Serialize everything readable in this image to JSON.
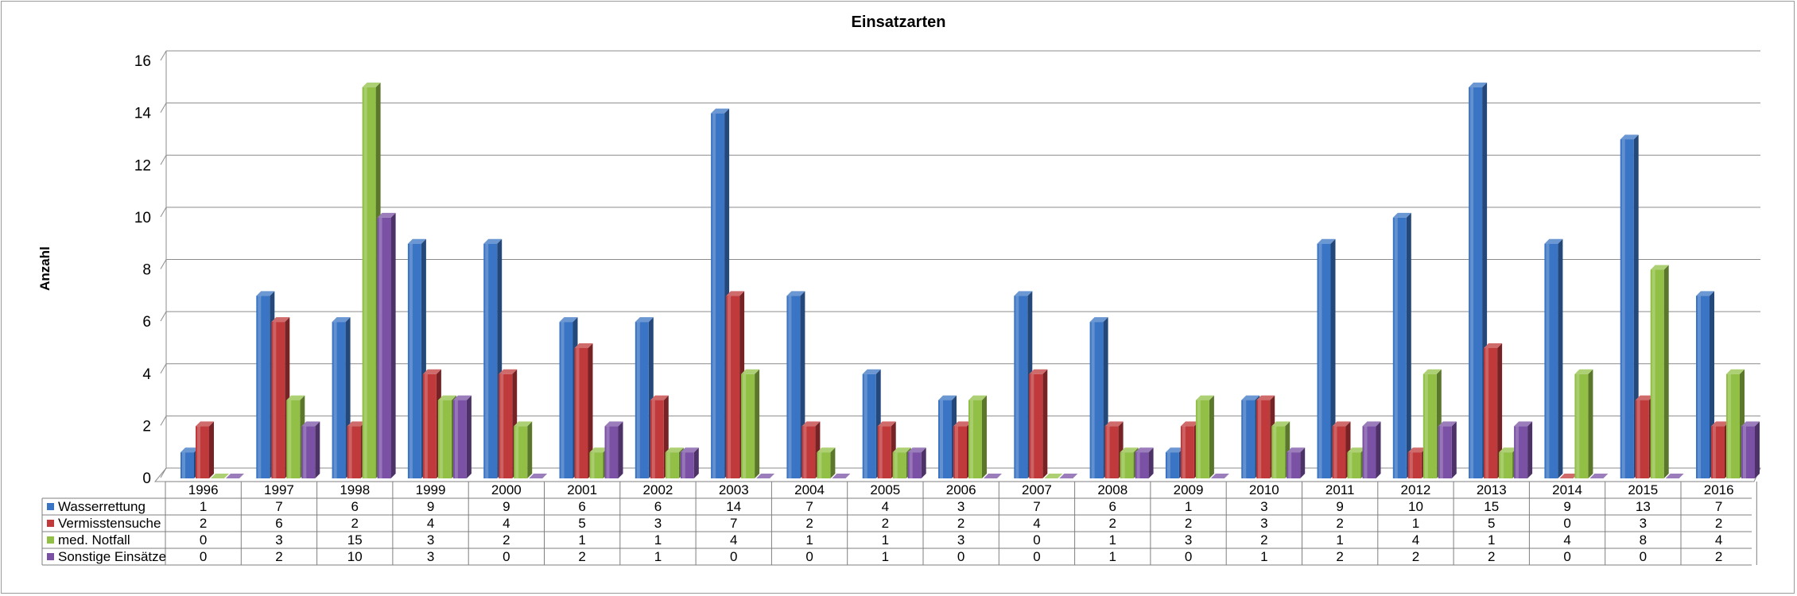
{
  "chart_data": {
    "type": "bar",
    "title": "Einsatzarten",
    "xlabel": "",
    "ylabel": "Anzahl",
    "ylim": [
      0,
      16
    ],
    "yticks": [
      0,
      2,
      4,
      6,
      8,
      10,
      12,
      14,
      16
    ],
    "grid": true,
    "style": "3d-clustered-column with data table",
    "categories": [
      "1996",
      "1997",
      "1998",
      "1999",
      "2000",
      "2001",
      "2002",
      "2003",
      "2004",
      "2005",
      "2006",
      "2007",
      "2008",
      "2009",
      "2010",
      "2011",
      "2012",
      "2013",
      "2014",
      "2015",
      "2016"
    ],
    "series": [
      {
        "name": "Wasserrettung",
        "color": "#3a74c4",
        "values": [
          1,
          7,
          6,
          9,
          9,
          6,
          6,
          14,
          7,
          4,
          3,
          7,
          6,
          1,
          3,
          9,
          10,
          15,
          9,
          13,
          7
        ]
      },
      {
        "name": "Vermisstensuche",
        "color": "#c0393b",
        "values": [
          2,
          6,
          2,
          4,
          4,
          5,
          3,
          7,
          2,
          2,
          2,
          4,
          2,
          2,
          3,
          2,
          1,
          5,
          0,
          3,
          2
        ]
      },
      {
        "name": "med. Notfall",
        "color": "#92c046",
        "values": [
          0,
          3,
          15,
          3,
          2,
          1,
          1,
          4,
          1,
          1,
          3,
          0,
          1,
          3,
          2,
          1,
          4,
          1,
          4,
          8,
          4
        ]
      },
      {
        "name": "Sonstige Einsätze",
        "color": "#7a51a5",
        "values": [
          0,
          2,
          10,
          3,
          0,
          2,
          1,
          0,
          0,
          1,
          0,
          0,
          1,
          0,
          1,
          2,
          2,
          2,
          0,
          0,
          2
        ]
      }
    ]
  }
}
